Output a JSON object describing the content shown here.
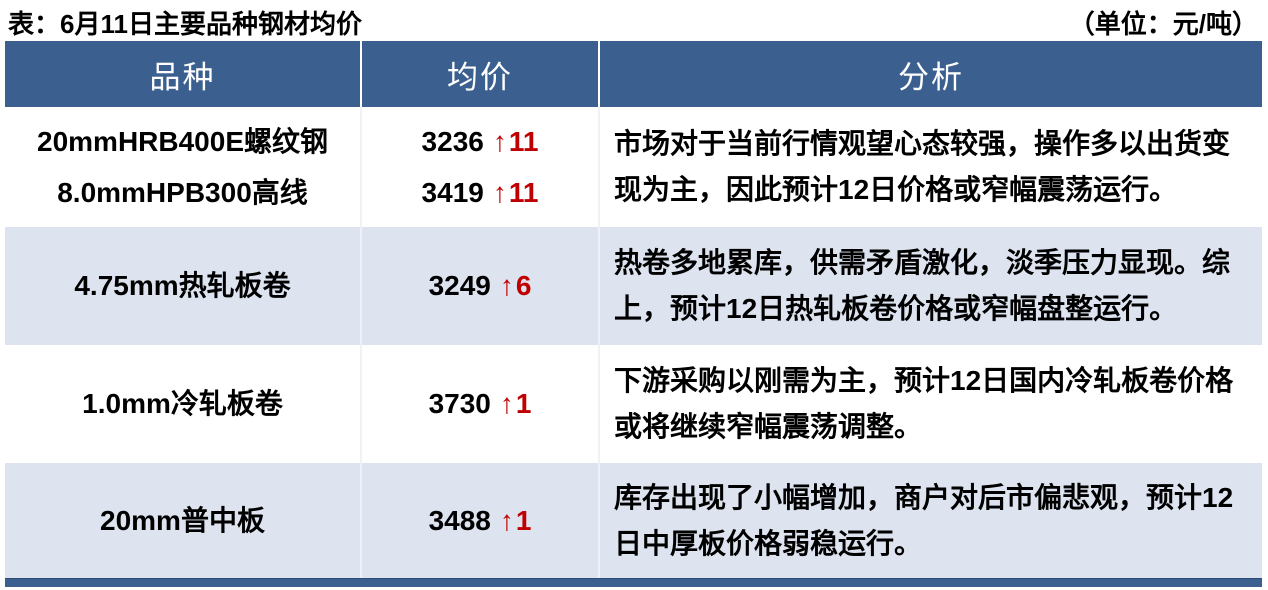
{
  "page": {
    "title": "表：6月11日主要品种钢材均价",
    "unit_note": "（单位：元/吨）"
  },
  "colors": {
    "header_bg": "#3b6090",
    "alt_row_bg": "#dde4f0",
    "up_red": "#c00000"
  },
  "table": {
    "headers": [
      "品种",
      "均价",
      "分析"
    ],
    "rows": [
      {
        "products": [
          {
            "name": "20mmHRB400E螺纹钢",
            "price": "3236",
            "arrow": "↑",
            "change": "11"
          },
          {
            "name": "8.0mmHPB300高线",
            "price": "3419",
            "arrow": "↑",
            "change": "11"
          }
        ],
        "analysis": "市场对于当前行情观望心态较强，操作多以出货变现为主，因此预计12日价格或窄幅震荡运行。"
      },
      {
        "products": [
          {
            "name": "4.75mm热轧板卷",
            "price": "3249",
            "arrow": "↑",
            "change": "6"
          }
        ],
        "analysis": "热卷多地累库，供需矛盾激化，淡季压力显现。综上，预计12日热轧板卷价格或窄幅盘整运行。"
      },
      {
        "products": [
          {
            "name": "1.0mm冷轧板卷",
            "price": "3730",
            "arrow": "↑",
            "change": "1"
          }
        ],
        "analysis": "下游采购以刚需为主，预计12日国内冷轧板卷价格或将继续窄幅震荡调整。"
      },
      {
        "products": [
          {
            "name": "20mm普中板",
            "price": "3488",
            "arrow": "↑",
            "change": "1"
          }
        ],
        "analysis": "库存出现了小幅增加，商户对后市偏悲观，预计12日中厚板价格弱稳运行。"
      }
    ]
  }
}
